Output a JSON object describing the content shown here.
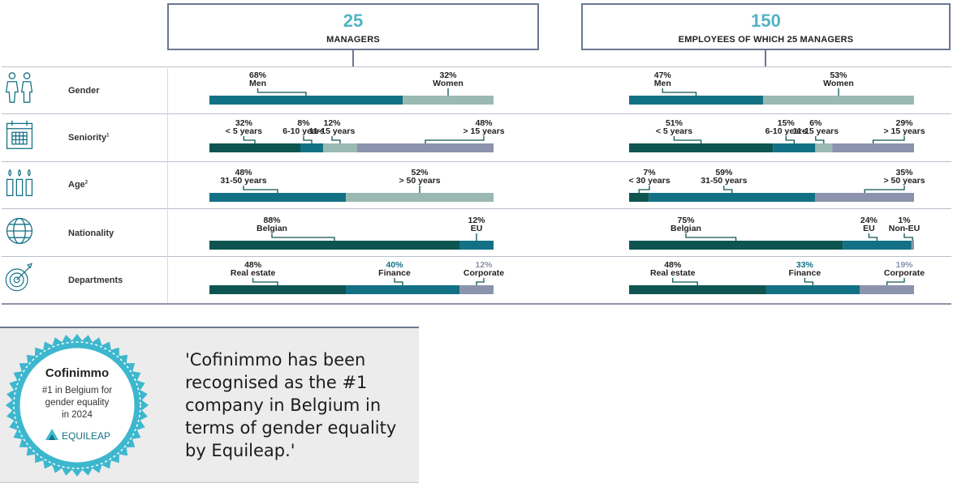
{
  "panels": [
    {
      "number": "25",
      "label": "MANAGERS"
    },
    {
      "number": "150",
      "label": "EMPLOYEES OF WHICH 25 MANAGERS"
    }
  ],
  "rows": [
    {
      "label": "Gender",
      "sup": "",
      "icon": "people-icon"
    },
    {
      "label": "Seniority",
      "sup": "1",
      "icon": "calendar-icon"
    },
    {
      "label": "Age",
      "sup": "2",
      "icon": "candles-icon"
    },
    {
      "label": "Nationality",
      "sup": "",
      "icon": "globe-icon"
    },
    {
      "label": "Departments",
      "sup": "",
      "icon": "target-icon"
    }
  ],
  "colors": {
    "dark": "#0e5551",
    "teal": "#137185",
    "sage": "#9ab9b3",
    "gray": "#8b93ad",
    "accent": "#52b3c4",
    "border": "#6b7890"
  },
  "chart_data": [
    {
      "type": "bar",
      "panel": "MANAGERS",
      "rows": [
        {
          "row": "Gender",
          "segments": [
            {
              "name": "Men",
              "value": 68,
              "label": "68%",
              "color": "teal"
            },
            {
              "name": "Women",
              "value": 32,
              "label": "32%",
              "color": "sage"
            }
          ]
        },
        {
          "row": "Seniority",
          "segments": [
            {
              "name": "< 5 years",
              "value": 32,
              "label": "32%",
              "color": "dark"
            },
            {
              "name": "6-10 years",
              "value": 8,
              "label": "8%",
              "color": "teal"
            },
            {
              "name": "11-15 years",
              "value": 12,
              "label": "12%",
              "color": "sage"
            },
            {
              "name": "> 15 years",
              "value": 48,
              "label": "48%",
              "color": "gray"
            }
          ]
        },
        {
          "row": "Age",
          "segments": [
            {
              "name": "31-50 years",
              "value": 48,
              "label": "48%",
              "color": "teal"
            },
            {
              "name": "> 50 years",
              "value": 52,
              "label": "52%",
              "color": "sage"
            }
          ]
        },
        {
          "row": "Nationality",
          "segments": [
            {
              "name": "Belgian",
              "value": 88,
              "label": "88%",
              "color": "dark"
            },
            {
              "name": "EU",
              "value": 12,
              "label": "12%",
              "color": "teal"
            }
          ]
        },
        {
          "row": "Departments",
          "segments": [
            {
              "name": "Real estate",
              "value": 48,
              "label": "48%",
              "color": "dark"
            },
            {
              "name": "Finance",
              "value": 40,
              "label": "40%",
              "color": "teal"
            },
            {
              "name": "Corporate",
              "value": 12,
              "label": "12%",
              "color": "gray"
            }
          ]
        }
      ]
    },
    {
      "type": "bar",
      "panel": "EMPLOYEES OF WHICH 25 MANAGERS",
      "rows": [
        {
          "row": "Gender",
          "segments": [
            {
              "name": "Men",
              "value": 47,
              "label": "47%",
              "color": "teal"
            },
            {
              "name": "Women",
              "value": 53,
              "label": "53%",
              "color": "sage"
            }
          ]
        },
        {
          "row": "Seniority",
          "segments": [
            {
              "name": "< 5 years",
              "value": 51,
              "label": "51%",
              "color": "dark"
            },
            {
              "name": "6-10 years",
              "value": 15,
              "label": "15%",
              "color": "teal"
            },
            {
              "name": "11-15 years",
              "value": 6,
              "label": "6%",
              "color": "sage"
            },
            {
              "name": "> 15 years",
              "value": 29,
              "label": "29%",
              "color": "gray"
            }
          ]
        },
        {
          "row": "Age",
          "segments": [
            {
              "name": "< 30 years",
              "value": 7,
              "label": "7%",
              "color": "dark"
            },
            {
              "name": "31-50 years",
              "value": 59,
              "label": "59%",
              "color": "teal"
            },
            {
              "name": "> 50 years",
              "value": 35,
              "label": "35%",
              "color": "gray"
            }
          ]
        },
        {
          "row": "Nationality",
          "segments": [
            {
              "name": "Belgian",
              "value": 75,
              "label": "75%",
              "color": "dark"
            },
            {
              "name": "EU",
              "value": 24,
              "label": "24%",
              "color": "teal"
            },
            {
              "name": "Non-EU",
              "value": 1,
              "label": "1%",
              "color": "gray"
            }
          ]
        },
        {
          "row": "Departments",
          "segments": [
            {
              "name": "Real estate",
              "value": 48,
              "label": "48%",
              "color": "dark"
            },
            {
              "name": "Finance",
              "value": 33,
              "label": "33%",
              "color": "teal"
            },
            {
              "name": "Corporate",
              "value": 19,
              "label": "19%",
              "color": "gray"
            }
          ]
        }
      ]
    }
  ],
  "badge": {
    "brand": "Cofinimmo",
    "line1": "#1 in Belgium for",
    "line2": "gender equality",
    "line3": "in 2024",
    "logo": "EQUILEAP"
  },
  "quote": "'Cofinimmo has been recognised as the #1 company in Belgium in terms of gender equality by Equileap.'"
}
